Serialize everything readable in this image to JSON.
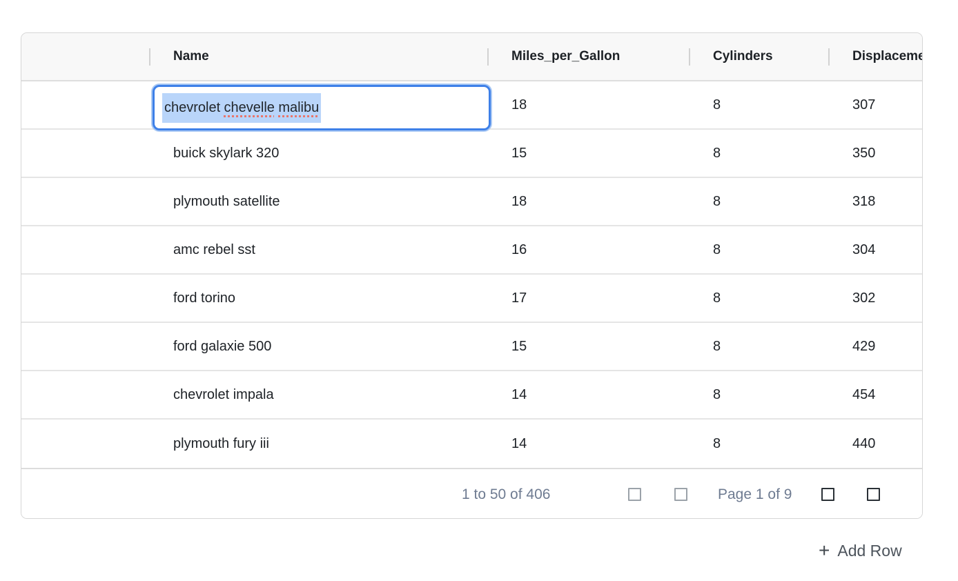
{
  "grid": {
    "columns": [
      "",
      "Name",
      "Miles_per_Gallon",
      "Cylinders",
      "Displacement"
    ],
    "rows": [
      {
        "name": "chevrolet chevelle malibu",
        "mpg": "18",
        "cylinders": "8",
        "displacement": "307"
      },
      {
        "name": "buick skylark 320",
        "mpg": "15",
        "cylinders": "8",
        "displacement": "350"
      },
      {
        "name": "plymouth satellite",
        "mpg": "18",
        "cylinders": "8",
        "displacement": "318"
      },
      {
        "name": "amc rebel sst",
        "mpg": "16",
        "cylinders": "8",
        "displacement": "304"
      },
      {
        "name": "ford torino",
        "mpg": "17",
        "cylinders": "8",
        "displacement": "302"
      },
      {
        "name": "ford galaxie 500",
        "mpg": "15",
        "cylinders": "8",
        "displacement": "429"
      },
      {
        "name": "chevrolet impala",
        "mpg": "14",
        "cylinders": "8",
        "displacement": "454"
      },
      {
        "name": "plymouth fury iii",
        "mpg": "14",
        "cylinders": "8",
        "displacement": "440"
      }
    ],
    "editor": {
      "value": "chevrolet chevelle malibu",
      "words": {
        "w1": "chevrolet",
        "w2": "chevelle",
        "w3": "malibu"
      },
      "state": "editing, text fully selected, spellcheck on chevelle and malibu"
    },
    "pagination": {
      "summary": "1 to 50 of 406",
      "page_label": "Page 1 of 9"
    }
  },
  "footer": {
    "plus_icon": "+",
    "add_row_label": "Add Row"
  },
  "colors": {
    "accent_blue": "#3e80e8",
    "focus_ring_blue": "#aac9f4",
    "text_selection_blue": "#b9d5fa",
    "spellcheck_red": "#e8756c",
    "header_bg": "#f8f8f8",
    "grid_border": "#d6d6d6",
    "row_divider": "#e5e5e5",
    "cell_text": "#1d2126",
    "pagination_text": "#6e7b91",
    "disabled_icon": "#9ba2a9",
    "active_icon": "#2a3036",
    "add_row_text": "#4d545c"
  }
}
